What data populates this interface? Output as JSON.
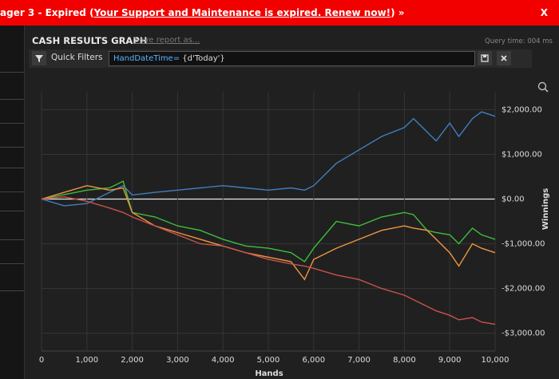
{
  "banner": {
    "prefix": "ager 3 - Expired (",
    "link": "Your Support and Maintenance is expired.  Renew now!",
    "suffix": ")",
    "close": "X"
  },
  "panel": {
    "title": "CASH RESULTS GRAPH",
    "save": "Save report as...",
    "query_time": "Query time: 004 ms"
  },
  "filters": {
    "label": "Quick Filters",
    "field": "HandDateTime=",
    "value": " {d'Today'}"
  },
  "chart_data": {
    "type": "line",
    "x_label": "Hands",
    "y_label": "Winnings",
    "xlim": [
      0,
      10000
    ],
    "ylim": [
      -3400,
      2400
    ],
    "xticks": [
      0,
      {
        "value": 1000,
        "label": "1,000"
      },
      {
        "value": 2000,
        "label": "2,000"
      },
      {
        "value": 3000,
        "label": "3,000"
      },
      {
        "value": 4000,
        "label": "4,000"
      },
      {
        "value": 5000,
        "label": "5,000"
      },
      {
        "value": 6000,
        "label": "6,000"
      },
      {
        "value": 7000,
        "label": "7,000"
      },
      {
        "value": 8000,
        "label": "8,000"
      },
      {
        "value": 9000,
        "label": "9,000"
      },
      {
        "value": 10000,
        "label": "10,000"
      }
    ],
    "yticks": [
      {
        "value": -3000,
        "label": "-$3,000.00"
      },
      {
        "value": -2000,
        "label": "-$2,000.00"
      },
      {
        "value": -1000,
        "label": "-$1,000.00"
      },
      {
        "value": 0,
        "label": "$0.00"
      },
      {
        "value": 1000,
        "label": "$1,000.00"
      },
      {
        "value": 2000,
        "label": "$2,000.00"
      }
    ],
    "grid": true,
    "x": [
      0,
      500,
      1000,
      1500,
      1800,
      2000,
      2500,
      3000,
      3500,
      4000,
      4500,
      5000,
      5500,
      5800,
      6000,
      6500,
      7000,
      7500,
      8000,
      8200,
      8500,
      8700,
      9000,
      9200,
      9500,
      9700,
      10000
    ],
    "series": [
      {
        "color": "#3f7fbf",
        "values": [
          0,
          -150,
          -100,
          150,
          300,
          90,
          150,
          200,
          250,
          300,
          250,
          200,
          250,
          200,
          300,
          800,
          1100,
          1400,
          1600,
          1800,
          1500,
          1300,
          1700,
          1400,
          1800,
          1950,
          1850
        ]
      },
      {
        "color": "#3cbf3c",
        "values": [
          0,
          100,
          200,
          250,
          400,
          -300,
          -400,
          -600,
          -700,
          -900,
          -1050,
          -1100,
          -1200,
          -1400,
          -1100,
          -500,
          -600,
          -400,
          -300,
          -350,
          -700,
          -750,
          -800,
          -1000,
          -650,
          -800,
          -900
        ]
      },
      {
        "color": "#ef9640",
        "values": [
          0,
          150,
          300,
          200,
          250,
          -300,
          -600,
          -750,
          -900,
          -1050,
          -1200,
          -1300,
          -1400,
          -1800,
          -1350,
          -1100,
          -900,
          -700,
          -600,
          -650,
          -700,
          -900,
          -1200,
          -1500,
          -1000,
          -1100,
          -1200
        ]
      },
      {
        "color": "#c9524c",
        "values": [
          0,
          50,
          -50,
          -200,
          -300,
          -400,
          -600,
          -800,
          -1000,
          -1050,
          -1200,
          -1350,
          -1450,
          -1500,
          -1550,
          -1700,
          -1800,
          -2000,
          -2150,
          -2250,
          -2400,
          -2500,
          -2600,
          -2700,
          -2650,
          -2750,
          -2800
        ]
      }
    ]
  }
}
